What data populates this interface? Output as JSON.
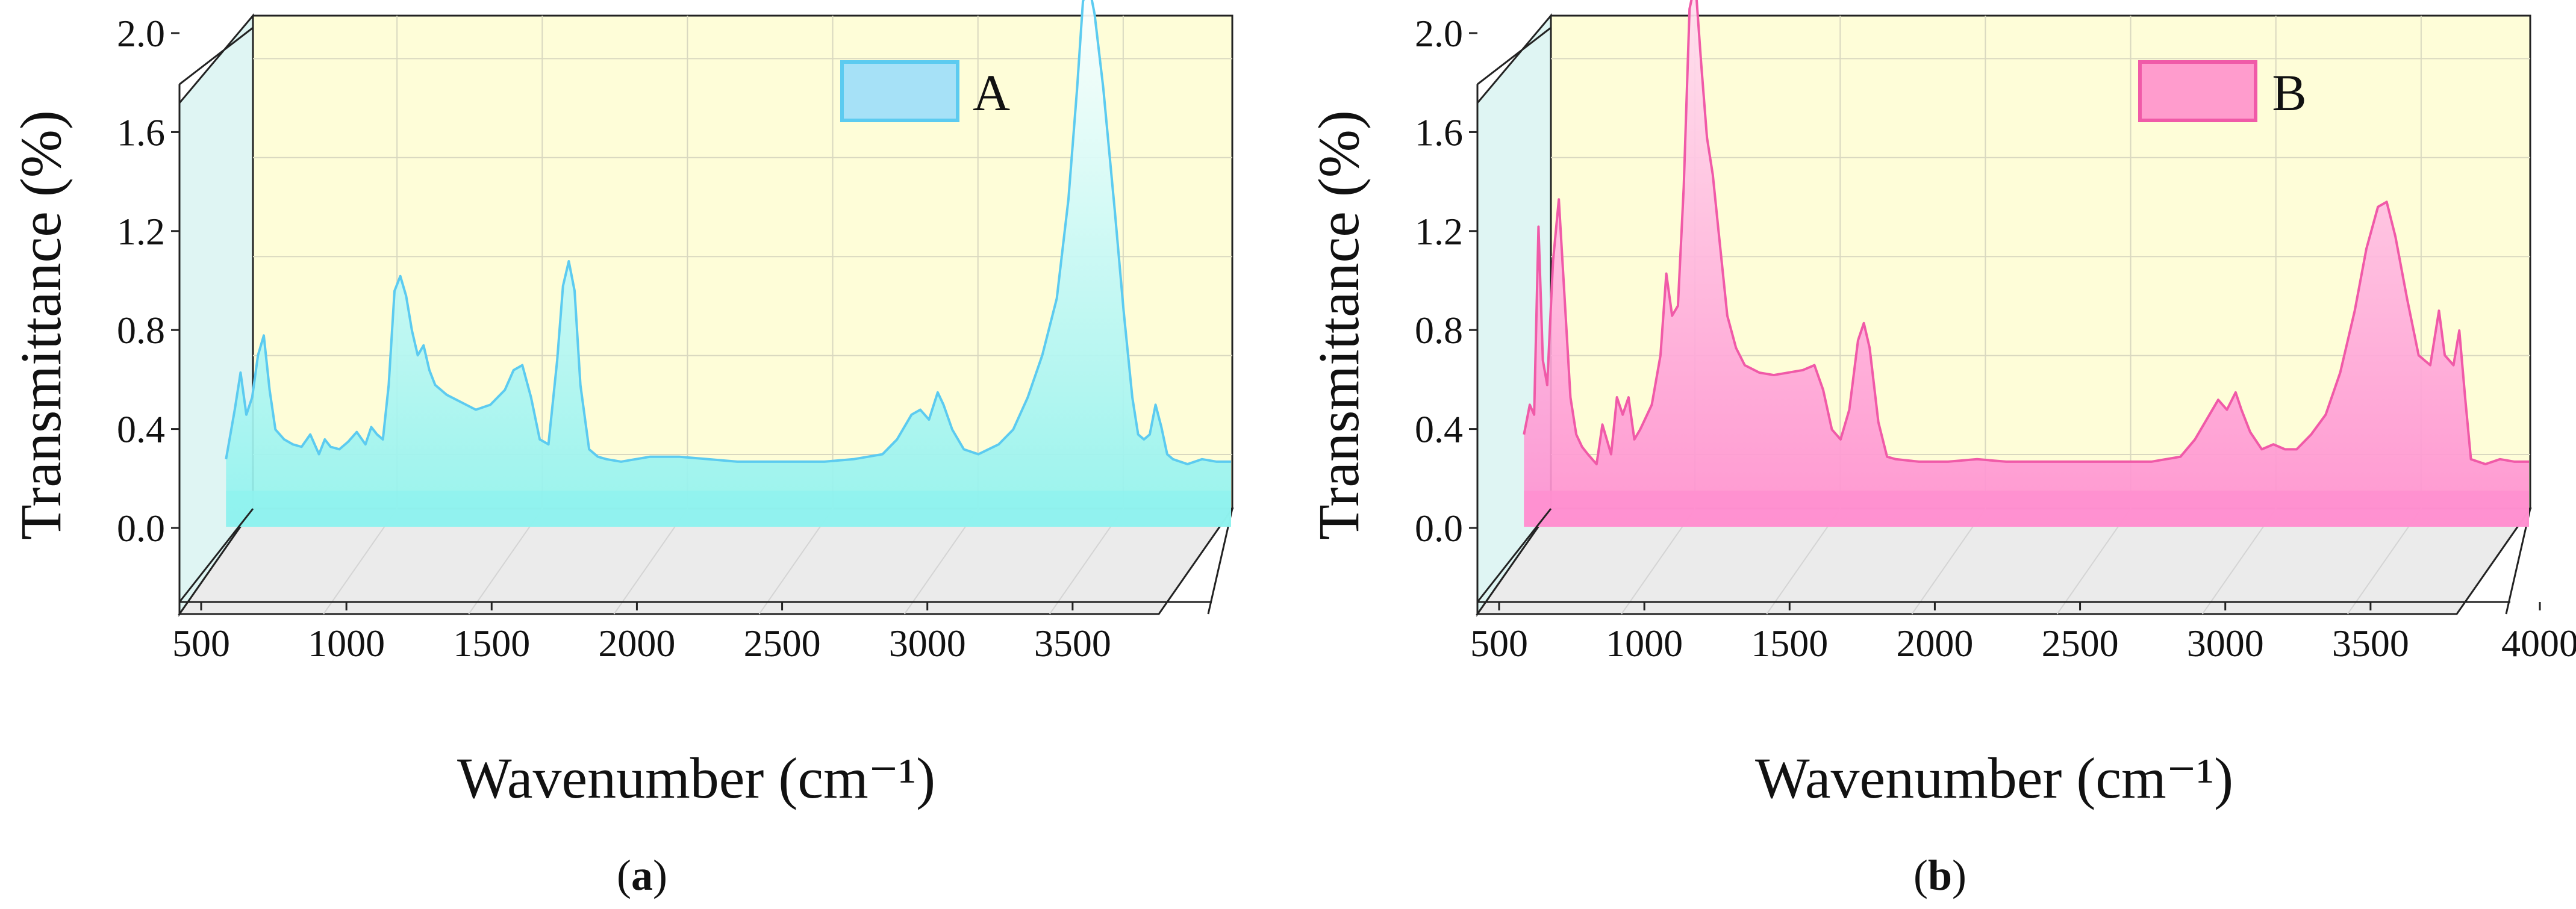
{
  "chart_data": [
    {
      "type": "area",
      "panel_label": "(a)",
      "panel_letter": "a",
      "xlabel": "Wavenumber (cm⁻¹)",
      "ylabel": "Transmittance (%)",
      "xlim": [
        500,
        4000
      ],
      "ylim": [
        0,
        2.2
      ],
      "x_ticks": [
        500,
        1000,
        1500,
        2000,
        2500,
        3000,
        3500
      ],
      "y_ticks": [
        "0.0",
        "0.4",
        "0.8",
        "1.2",
        "1.6",
        "2.0"
      ],
      "legend_position": "top-right",
      "grid": true,
      "colors": {
        "line": "#5ccbf0",
        "fill_top": "#ffffff",
        "fill_bottom": "#8ff2ee",
        "legend_fill": "#a6e1f7"
      },
      "series": [
        {
          "name": "A",
          "x": [
            540,
            570,
            590,
            610,
            630,
            650,
            670,
            690,
            710,
            740,
            770,
            800,
            830,
            860,
            880,
            900,
            930,
            960,
            990,
            1020,
            1040,
            1060,
            1080,
            1100,
            1120,
            1140,
            1160,
            1180,
            1200,
            1220,
            1240,
            1260,
            1300,
            1350,
            1400,
            1450,
            1500,
            1530,
            1560,
            1590,
            1620,
            1650,
            1680,
            1700,
            1720,
            1740,
            1760,
            1790,
            1820,
            1850,
            1900,
            2000,
            2100,
            2200,
            2300,
            2400,
            2500,
            2600,
            2700,
            2800,
            2850,
            2900,
            2930,
            2960,
            2990,
            3010,
            3040,
            3080,
            3130,
            3200,
            3250,
            3300,
            3350,
            3400,
            3440,
            3470,
            3490,
            3510,
            3530,
            3560,
            3600,
            3630,
            3660,
            3680,
            3700,
            3720,
            3740,
            3760,
            3780,
            3800,
            3850,
            3900,
            3950,
            4000
          ],
          "values": [
            0.2,
            0.4,
            0.55,
            0.38,
            0.45,
            0.62,
            0.7,
            0.48,
            0.32,
            0.28,
            0.26,
            0.25,
            0.3,
            0.22,
            0.28,
            0.25,
            0.24,
            0.27,
            0.31,
            0.26,
            0.33,
            0.3,
            0.28,
            0.5,
            0.88,
            0.94,
            0.86,
            0.72,
            0.62,
            0.66,
            0.56,
            0.5,
            0.46,
            0.43,
            0.4,
            0.42,
            0.48,
            0.56,
            0.58,
            0.45,
            0.28,
            0.26,
            0.6,
            0.9,
            1.0,
            0.88,
            0.5,
            0.24,
            0.21,
            0.2,
            0.19,
            0.21,
            0.21,
            0.2,
            0.19,
            0.19,
            0.19,
            0.19,
            0.2,
            0.22,
            0.28,
            0.38,
            0.4,
            0.36,
            0.47,
            0.42,
            0.32,
            0.24,
            0.22,
            0.26,
            0.32,
            0.45,
            0.62,
            0.85,
            1.25,
            1.7,
            2.05,
            2.12,
            2.0,
            1.7,
            1.2,
            0.8,
            0.45,
            0.3,
            0.28,
            0.3,
            0.42,
            0.33,
            0.22,
            0.2,
            0.18,
            0.2,
            0.19,
            0.19
          ]
        }
      ]
    },
    {
      "type": "area",
      "panel_label": "(b)",
      "panel_letter": "b",
      "xlabel": "Wavenumber (cm⁻¹)",
      "ylabel": "Transmittance (%)",
      "xlim": [
        500,
        4000
      ],
      "ylim": [
        0,
        2.2
      ],
      "x_ticks": [
        500,
        1000,
        1500,
        2000,
        2500,
        3000,
        3500,
        4000
      ],
      "y_ticks": [
        "0.0",
        "0.4",
        "0.8",
        "1.2",
        "1.6",
        "2.0"
      ],
      "legend_position": "top-right",
      "grid": true,
      "colors": {
        "line": "#f05aa8",
        "fill_top": "#ffe1ef",
        "fill_bottom": "#ff8fd0",
        "legend_fill": "#ff9ccd"
      },
      "series": [
        {
          "name": "B",
          "x": [
            540,
            560,
            575,
            590,
            605,
            620,
            640,
            660,
            680,
            700,
            720,
            740,
            760,
            790,
            810,
            840,
            860,
            880,
            900,
            920,
            940,
            980,
            1010,
            1030,
            1050,
            1070,
            1090,
            1110,
            1130,
            1150,
            1170,
            1190,
            1210,
            1240,
            1270,
            1300,
            1350,
            1400,
            1450,
            1500,
            1540,
            1570,
            1600,
            1630,
            1660,
            1690,
            1710,
            1730,
            1760,
            1790,
            1820,
            1900,
            2000,
            2100,
            2200,
            2300,
            2400,
            2500,
            2600,
            2700,
            2800,
            2850,
            2900,
            2930,
            2960,
            2990,
            3010,
            3040,
            3080,
            3120,
            3160,
            3200,
            3250,
            3300,
            3350,
            3400,
            3440,
            3480,
            3510,
            3540,
            3580,
            3620,
            3660,
            3690,
            3710,
            3740,
            3760,
            3780,
            3800,
            3850,
            3900,
            3950,
            4000
          ],
          "values": [
            0.3,
            0.42,
            0.38,
            1.14,
            0.6,
            0.5,
            1.0,
            1.25,
            0.85,
            0.45,
            0.3,
            0.25,
            0.22,
            0.18,
            0.34,
            0.22,
            0.45,
            0.38,
            0.45,
            0.28,
            0.32,
            0.42,
            0.62,
            0.95,
            0.78,
            0.82,
            1.3,
            2.02,
            2.13,
            1.8,
            1.5,
            1.35,
            1.12,
            0.78,
            0.65,
            0.58,
            0.55,
            0.54,
            0.55,
            0.56,
            0.58,
            0.48,
            0.32,
            0.28,
            0.4,
            0.68,
            0.75,
            0.65,
            0.35,
            0.21,
            0.2,
            0.19,
            0.19,
            0.2,
            0.19,
            0.19,
            0.19,
            0.19,
            0.19,
            0.19,
            0.21,
            0.28,
            0.38,
            0.44,
            0.4,
            0.47,
            0.4,
            0.31,
            0.24,
            0.26,
            0.24,
            0.24,
            0.3,
            0.38,
            0.55,
            0.8,
            1.05,
            1.22,
            1.24,
            1.1,
            0.85,
            0.62,
            0.58,
            0.8,
            0.62,
            0.58,
            0.72,
            0.45,
            0.2,
            0.18,
            0.2,
            0.19,
            0.19
          ]
        }
      ]
    }
  ]
}
